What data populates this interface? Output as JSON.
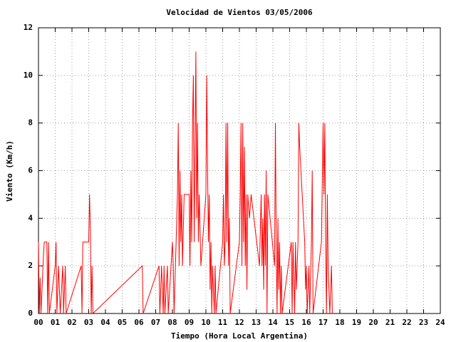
{
  "chart_data": {
    "type": "line",
    "title": "Velocidad de Vientos 03/05/2006",
    "x_label": "Tiempo (Hora Local Argentina)",
    "y_label": "Viento (Km/h)",
    "xlim": [
      0,
      24
    ],
    "ylim": [
      0,
      12
    ],
    "xticks": [
      {
        "value": 0,
        "label": "00"
      },
      {
        "value": 1,
        "label": "01"
      },
      {
        "value": 2,
        "label": "02"
      },
      {
        "value": 3,
        "label": "03"
      },
      {
        "value": 4,
        "label": "04"
      },
      {
        "value": 5,
        "label": "05"
      },
      {
        "value": 6,
        "label": "06"
      },
      {
        "value": 7,
        "label": "07"
      },
      {
        "value": 8,
        "label": "08"
      },
      {
        "value": 9,
        "label": "09"
      },
      10,
      11,
      12,
      13,
      14,
      15,
      16,
      17,
      18,
      19,
      20,
      21,
      22,
      23,
      24
    ],
    "yticks": [
      0,
      2,
      4,
      6,
      8,
      10,
      12
    ],
    "grid": true,
    "series": [
      {
        "name": "Viento",
        "color": "#ff0000",
        "x": [
          0.0,
          0.05,
          0.1,
          0.15,
          0.3,
          0.35,
          0.5,
          0.55,
          0.6,
          0.65,
          1.0,
          1.05,
          1.1,
          1.2,
          1.3,
          1.45,
          1.5,
          1.6,
          1.65,
          2.55,
          2.6,
          2.65,
          3.0,
          3.05,
          3.1,
          3.15,
          3.2,
          3.25,
          6.2,
          6.25,
          7.2,
          7.25,
          7.35,
          7.4,
          7.45,
          7.5,
          7.55,
          7.7,
          7.75,
          8.0,
          8.05,
          8.1,
          8.3,
          8.35,
          8.4,
          8.45,
          8.5,
          8.55,
          8.6,
          8.7,
          9.0,
          9.05,
          9.1,
          9.15,
          9.2,
          9.25,
          9.3,
          9.35,
          9.4,
          9.45,
          9.5,
          9.55,
          9.6,
          9.7,
          10.0,
          10.05,
          10.1,
          10.15,
          10.2,
          10.25,
          10.3,
          10.35,
          10.4,
          10.5,
          10.55,
          10.6,
          11.0,
          11.05,
          11.1,
          11.15,
          11.2,
          11.25,
          11.3,
          11.35,
          11.4,
          11.45,
          12.0,
          12.05,
          12.1,
          12.15,
          12.2,
          12.25,
          12.3,
          12.35,
          12.4,
          12.45,
          12.5,
          12.6,
          12.7,
          13.2,
          13.3,
          13.35,
          13.4,
          13.45,
          13.5,
          13.55,
          13.6,
          13.65,
          13.7,
          14.1,
          14.15,
          14.2,
          14.25,
          14.3,
          14.35,
          14.4,
          14.45,
          14.5,
          14.55,
          15.1,
          15.15,
          15.2,
          15.3,
          15.35,
          15.4,
          15.5,
          15.55,
          15.6,
          15.9,
          15.95,
          16.0,
          16.05,
          16.15,
          16.2,
          16.3,
          16.35,
          16.4,
          16.9,
          17.0,
          17.05,
          17.1,
          17.15,
          17.2,
          17.25,
          17.3,
          17.4,
          17.5,
          17.55
        ],
        "values": [
          3,
          0,
          1.5,
          0,
          2.5,
          3,
          3,
          0,
          3,
          0,
          2,
          3,
          0,
          2,
          0,
          2,
          0,
          2,
          0,
          2,
          0,
          3,
          3,
          5,
          3.5,
          0,
          2,
          0,
          2,
          0,
          2,
          0,
          2,
          1,
          0,
          2,
          0,
          2,
          0,
          3,
          2,
          0,
          5,
          8,
          2,
          6,
          3,
          5,
          2,
          5,
          5,
          2,
          6,
          3,
          8,
          10,
          3,
          7,
          11,
          4,
          8,
          3,
          5,
          2,
          5,
          10,
          6,
          3,
          5,
          1,
          3,
          0,
          2,
          0,
          2,
          0,
          3,
          5,
          2,
          3,
          8,
          3,
          8,
          2,
          4,
          0,
          3,
          5,
          8,
          2,
          8,
          3,
          7,
          2,
          5,
          1,
          5,
          4,
          5,
          2,
          5,
          2,
          4,
          1,
          5,
          2,
          6,
          0,
          5,
          2,
          8,
          3,
          0,
          4,
          1,
          3,
          0,
          2,
          0,
          3,
          0,
          3,
          0,
          3,
          1,
          3,
          8,
          7,
          3,
          1,
          2,
          0,
          2,
          0,
          3,
          6,
          0,
          3,
          8,
          5,
          8,
          3,
          0,
          5,
          2,
          0,
          2,
          0
        ]
      }
    ]
  }
}
